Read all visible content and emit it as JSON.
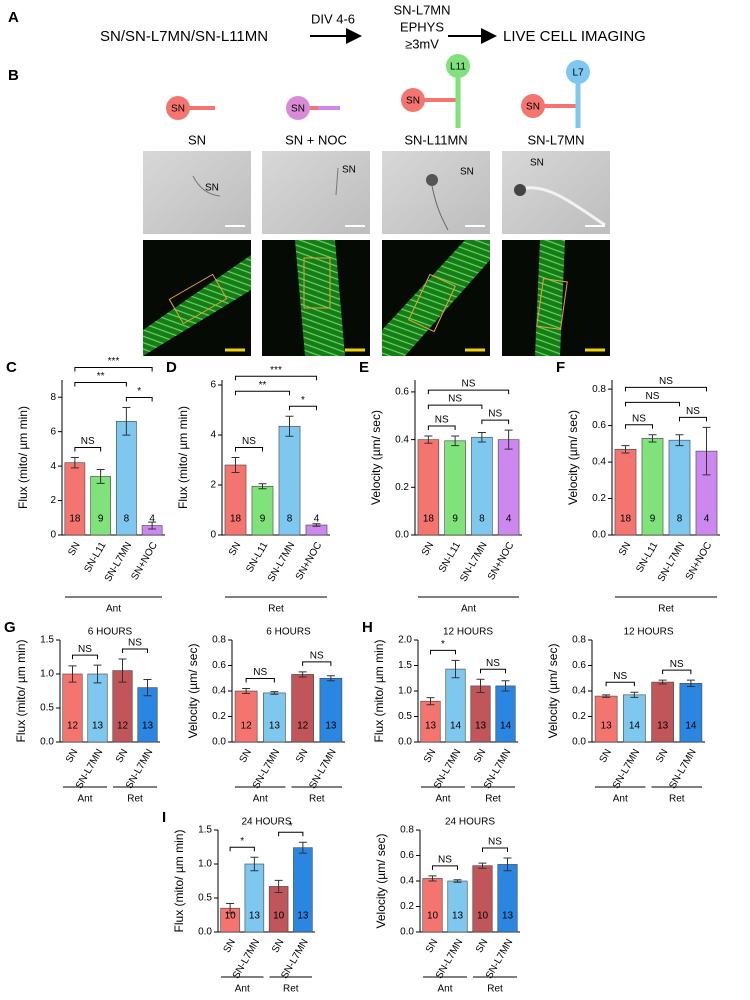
{
  "panel_a": {
    "label": "A",
    "source": "SN/SN-L7MN/SN-L11MN",
    "step": "DIV 4-6",
    "condition": [
      "SN-L7MN",
      "EPHYS",
      "≥3mV"
    ],
    "result": "LIVE CELL IMAGING"
  },
  "panel_b": {
    "label": "B",
    "columns": [
      {
        "title": "SN",
        "icon": "SN",
        "micro_label": "SN"
      },
      {
        "title": "SN + NOC",
        "icon": "SN",
        "micro_label": "SN"
      },
      {
        "title": "SN-L11MN",
        "icon": "SN",
        "target": "L11",
        "micro_label": "SN"
      },
      {
        "title": "SN-L7MN",
        "icon": "SN",
        "target": "L7",
        "micro_label": "SN"
      }
    ]
  },
  "chart_data": [
    {
      "type": "bar",
      "panel": "C",
      "y_label": "Flux (mito/ µm min)",
      "categories": [
        "SN",
        "SN-L11",
        "SN-L7MN",
        "SN+NOC"
      ],
      "values": [
        4.2,
        3.4,
        6.6,
        0.55
      ],
      "errors": [
        0.3,
        0.4,
        0.8,
        0.2
      ],
      "n": [
        18,
        9,
        8,
        4
      ],
      "colors": [
        "#f4756f",
        "#7fe27a",
        "#7ec8ef",
        "#cc88ee"
      ],
      "ylim": [
        0,
        9
      ],
      "yticks": [
        0,
        2,
        4,
        6,
        8
      ],
      "groups": [
        "Ant"
      ],
      "comparisons": [
        {
          "from": 0,
          "to": 1,
          "label": "NS"
        },
        {
          "from": 2,
          "to": 3,
          "label": "*"
        },
        {
          "from": 0,
          "to": 2,
          "label": "**"
        },
        {
          "from": 0,
          "to": 3,
          "label": "***"
        }
      ]
    },
    {
      "type": "bar",
      "panel": "D",
      "y_label": "Flux (mito/ µm min)",
      "categories": [
        "SN",
        "SN-L11",
        "SN-L7MN",
        "SN+NOC"
      ],
      "values": [
        2.8,
        1.95,
        4.35,
        0.4
      ],
      "errors": [
        0.3,
        0.1,
        0.4,
        0.05
      ],
      "n": [
        18,
        9,
        8,
        4
      ],
      "colors": [
        "#f4756f",
        "#7fe27a",
        "#7ec8ef",
        "#cc88ee"
      ],
      "ylim": [
        0,
        6.2
      ],
      "yticks": [
        0,
        2,
        4,
        6
      ],
      "groups": [
        "Ret"
      ],
      "comparisons": [
        {
          "from": 0,
          "to": 1,
          "label": "NS"
        },
        {
          "from": 2,
          "to": 3,
          "label": "*"
        },
        {
          "from": 0,
          "to": 2,
          "label": "**"
        },
        {
          "from": 0,
          "to": 3,
          "label": "***"
        }
      ]
    },
    {
      "type": "bar",
      "panel": "E",
      "y_label": "Velocity (µm/ sec)",
      "categories": [
        "SN",
        "SN-L11",
        "SN-L7MN",
        "SN+NOC"
      ],
      "values": [
        0.4,
        0.395,
        0.41,
        0.4
      ],
      "errors": [
        0.015,
        0.02,
        0.02,
        0.04
      ],
      "n": [
        18,
        9,
        8,
        4
      ],
      "colors": [
        "#f4756f",
        "#7fe27a",
        "#7ec8ef",
        "#cc88ee"
      ],
      "ylim": [
        0,
        0.65
      ],
      "yticks": [
        {
          "value": 0,
          "label": "0.0"
        },
        0.2,
        0.4,
        0.6
      ],
      "groups": [
        "Ant"
      ],
      "comparisons": [
        {
          "from": 0,
          "to": 1,
          "label": "NS"
        },
        {
          "from": 2,
          "to": 3,
          "label": "NS"
        },
        {
          "from": 0,
          "to": 2,
          "label": "NS"
        },
        {
          "from": 0,
          "to": 3,
          "label": "NS"
        }
      ]
    },
    {
      "type": "bar",
      "panel": "F",
      "y_label": "Velocity (µm/ sec)",
      "categories": [
        "SN",
        "SN-L11",
        "SN-L7MN",
        "SN+NOC"
      ],
      "values": [
        0.47,
        0.53,
        0.52,
        0.46
      ],
      "errors": [
        0.02,
        0.02,
        0.03,
        0.13
      ],
      "n": [
        18,
        9,
        8,
        4
      ],
      "colors": [
        "#f4756f",
        "#7fe27a",
        "#7ec8ef",
        "#cc88ee"
      ],
      "ylim": [
        0,
        0.85
      ],
      "yticks": [
        {
          "value": 0,
          "label": "0.0"
        },
        0.2,
        0.4,
        0.6,
        0.8
      ],
      "groups": [
        "Ret"
      ],
      "comparisons": [
        {
          "from": 0,
          "to": 1,
          "label": "NS"
        },
        {
          "from": 2,
          "to": 3,
          "label": "NS"
        },
        {
          "from": 0,
          "to": 2,
          "label": "NS"
        },
        {
          "from": 0,
          "to": 3,
          "label": "NS"
        }
      ]
    },
    {
      "type": "bar",
      "panel": "G",
      "title": "6 HOURS",
      "y_label": "Flux (mito/ µm min)",
      "categories": [
        "SN",
        "SN-L7MN",
        "SN",
        "SN-L7MN"
      ],
      "values": [
        1.0,
        1.0,
        1.05,
        0.8
      ],
      "errors": [
        0.12,
        0.13,
        0.17,
        0.12
      ],
      "n": [
        12,
        13,
        12,
        13
      ],
      "colors": [
        "#f4756f",
        "#7ec8ef",
        "#c0555a",
        "#2a86e0"
      ],
      "ylim": [
        0,
        1.5
      ],
      "yticks": [
        {
          "value": 0,
          "label": "0.0"
        },
        0.5,
        {
          "value": 1,
          "label": "1.0"
        },
        1.5
      ],
      "groups": [
        "Ant",
        "Ret"
      ],
      "comparisons": [
        {
          "from": 0,
          "to": 1,
          "label": "NS"
        },
        {
          "from": 2,
          "to": 3,
          "label": "NS"
        }
      ]
    },
    {
      "type": "bar",
      "title": "6 HOURS",
      "y_label": "Velocity (µm/ sec)",
      "categories": [
        "SN",
        "SN-L7MN",
        "SN",
        "SN-L7MN"
      ],
      "values": [
        0.4,
        0.385,
        0.53,
        0.5
      ],
      "errors": [
        0.02,
        0.01,
        0.02,
        0.02
      ],
      "n": [
        12,
        13,
        12,
        13
      ],
      "colors": [
        "#f4756f",
        "#7ec8ef",
        "#c0555a",
        "#2a86e0"
      ],
      "ylim": [
        0,
        0.8
      ],
      "yticks": [
        {
          "value": 0,
          "label": "0.0"
        },
        0.2,
        0.4,
        0.6,
        0.8
      ],
      "groups": [
        "Ant",
        "Ret"
      ],
      "comparisons": [
        {
          "from": 0,
          "to": 1,
          "label": "NS"
        },
        {
          "from": 2,
          "to": 3,
          "label": "NS"
        }
      ]
    },
    {
      "type": "bar",
      "panel": "H",
      "title": "12 HOURS",
      "y_label": "Flux (mito/ µm min)",
      "categories": [
        "SN",
        "SN-L7MN",
        "SN",
        "SN-L7MN"
      ],
      "values": [
        0.8,
        1.43,
        1.1,
        1.1
      ],
      "errors": [
        0.07,
        0.17,
        0.13,
        0.1
      ],
      "n": [
        13,
        14,
        13,
        14
      ],
      "colors": [
        "#f4756f",
        "#7ec8ef",
        "#c0555a",
        "#2a86e0"
      ],
      "ylim": [
        0,
        2
      ],
      "yticks": [
        {
          "value": 0,
          "label": "0.0"
        },
        0.5,
        {
          "value": 1,
          "label": "1.0"
        },
        1.5,
        {
          "value": 2,
          "label": "2.0"
        }
      ],
      "groups": [
        "Ant",
        "Ret"
      ],
      "comparisons": [
        {
          "from": 0,
          "to": 1,
          "label": "*"
        },
        {
          "from": 2,
          "to": 3,
          "label": "NS"
        }
      ]
    },
    {
      "type": "bar",
      "title": "12 HOURS",
      "y_label": "Velocity (µm/ sec)",
      "categories": [
        "SN",
        "SN-L7MN",
        "SN",
        "SN-L7MN"
      ],
      "values": [
        0.36,
        0.37,
        0.47,
        0.46
      ],
      "errors": [
        0.01,
        0.02,
        0.015,
        0.025
      ],
      "n": [
        13,
        14,
        13,
        14
      ],
      "colors": [
        "#f4756f",
        "#7ec8ef",
        "#c0555a",
        "#2a86e0"
      ],
      "ylim": [
        0,
        0.8
      ],
      "yticks": [
        {
          "value": 0,
          "label": "0.0"
        },
        0.2,
        0.4,
        0.6,
        0.8
      ],
      "groups": [
        "Ant",
        "Ret"
      ],
      "comparisons": [
        {
          "from": 0,
          "to": 1,
          "label": "NS"
        },
        {
          "from": 2,
          "to": 3,
          "label": "NS"
        }
      ]
    },
    {
      "type": "bar",
      "panel": "I",
      "title": "24 HOURS",
      "y_label": "Flux (mito/ µm min)",
      "categories": [
        "SN",
        "SN-L7MN",
        "SN",
        "SN-L7MN"
      ],
      "values": [
        0.35,
        1.0,
        0.67,
        1.24
      ],
      "errors": [
        0.07,
        0.1,
        0.09,
        0.08
      ],
      "n": [
        10,
        13,
        10,
        13
      ],
      "colors": [
        "#f4756f",
        "#7ec8ef",
        "#c0555a",
        "#2a86e0"
      ],
      "ylim": [
        0,
        1.5
      ],
      "yticks": [
        {
          "value": 0,
          "label": "0.0"
        },
        0.5,
        {
          "value": 1,
          "label": "1.0"
        },
        1.5
      ],
      "groups": [
        "Ant",
        "Ret"
      ],
      "comparisons": [
        {
          "from": 0,
          "to": 1,
          "label": "*"
        },
        {
          "from": 2,
          "to": 3,
          "label": "*"
        }
      ]
    },
    {
      "type": "bar",
      "title": "24 HOURS",
      "y_label": "Velocity (µm/ sec)",
      "categories": [
        "SN",
        "SN-L7MN",
        "SN",
        "SN-L7MN"
      ],
      "values": [
        0.42,
        0.4,
        0.52,
        0.53
      ],
      "errors": [
        0.02,
        0.01,
        0.02,
        0.05
      ],
      "n": [
        10,
        13,
        10,
        13
      ],
      "colors": [
        "#f4756f",
        "#7ec8ef",
        "#c0555a",
        "#2a86e0"
      ],
      "ylim": [
        0,
        0.8
      ],
      "yticks": [
        {
          "value": 0,
          "label": "0.0"
        },
        0.2,
        0.4,
        0.6,
        0.8
      ],
      "groups": [
        "Ant",
        "Ret"
      ],
      "comparisons": [
        {
          "from": 0,
          "to": 1,
          "label": "NS"
        },
        {
          "from": 2,
          "to": 3,
          "label": "NS"
        }
      ]
    }
  ]
}
